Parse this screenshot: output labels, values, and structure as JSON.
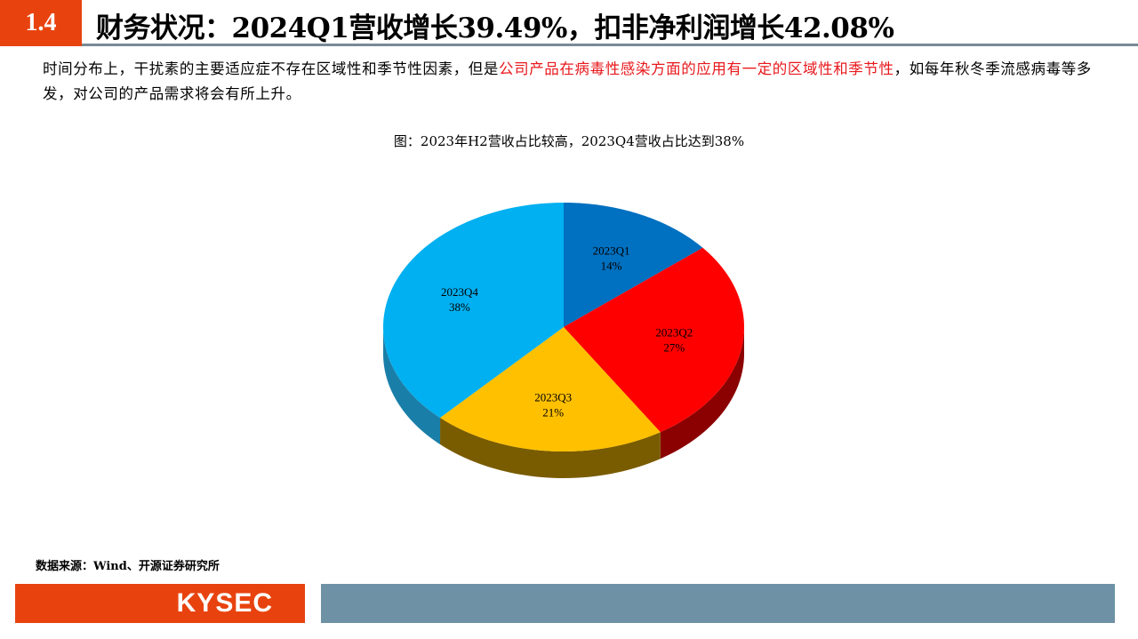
{
  "header": {
    "section_number": "1.4",
    "title": "财务状况：2024Q1营收增长39.49%，扣非净利润增长42.08%"
  },
  "body": {
    "text_plain": "时间分布上，干扰素的主要适应症不存在区域性和季节性因素，但是",
    "text_red_1": "公司产品在病毒性感染方面的应用有一定的区域性和季节性",
    "text_tail": "，如每年秋冬季流感病毒等多发，对公司的产品需求将会有所上升。"
  },
  "chart_data": {
    "type": "pie",
    "title": "图：2023年H2营收占比较高，2023Q4营收占比达到38%",
    "categories": [
      "2023Q1",
      "2023Q2",
      "2023Q3",
      "2023Q4"
    ],
    "values": [
      14,
      27,
      21,
      38
    ],
    "labels": [
      "14%",
      "27%",
      "21%",
      "38%"
    ],
    "colors": [
      "#0070C0",
      "#FF0000",
      "#FFC000",
      "#00B0F0"
    ],
    "side_colors": [
      "#004f88",
      "#8B0000",
      "#7a5c00",
      "#1a7fa8"
    ],
    "style": "3d",
    "start": "12 o'clock, clockwise"
  },
  "footer": {
    "source": "数据来源：Wind、开源证券研究所",
    "logo": "KYSEC"
  }
}
